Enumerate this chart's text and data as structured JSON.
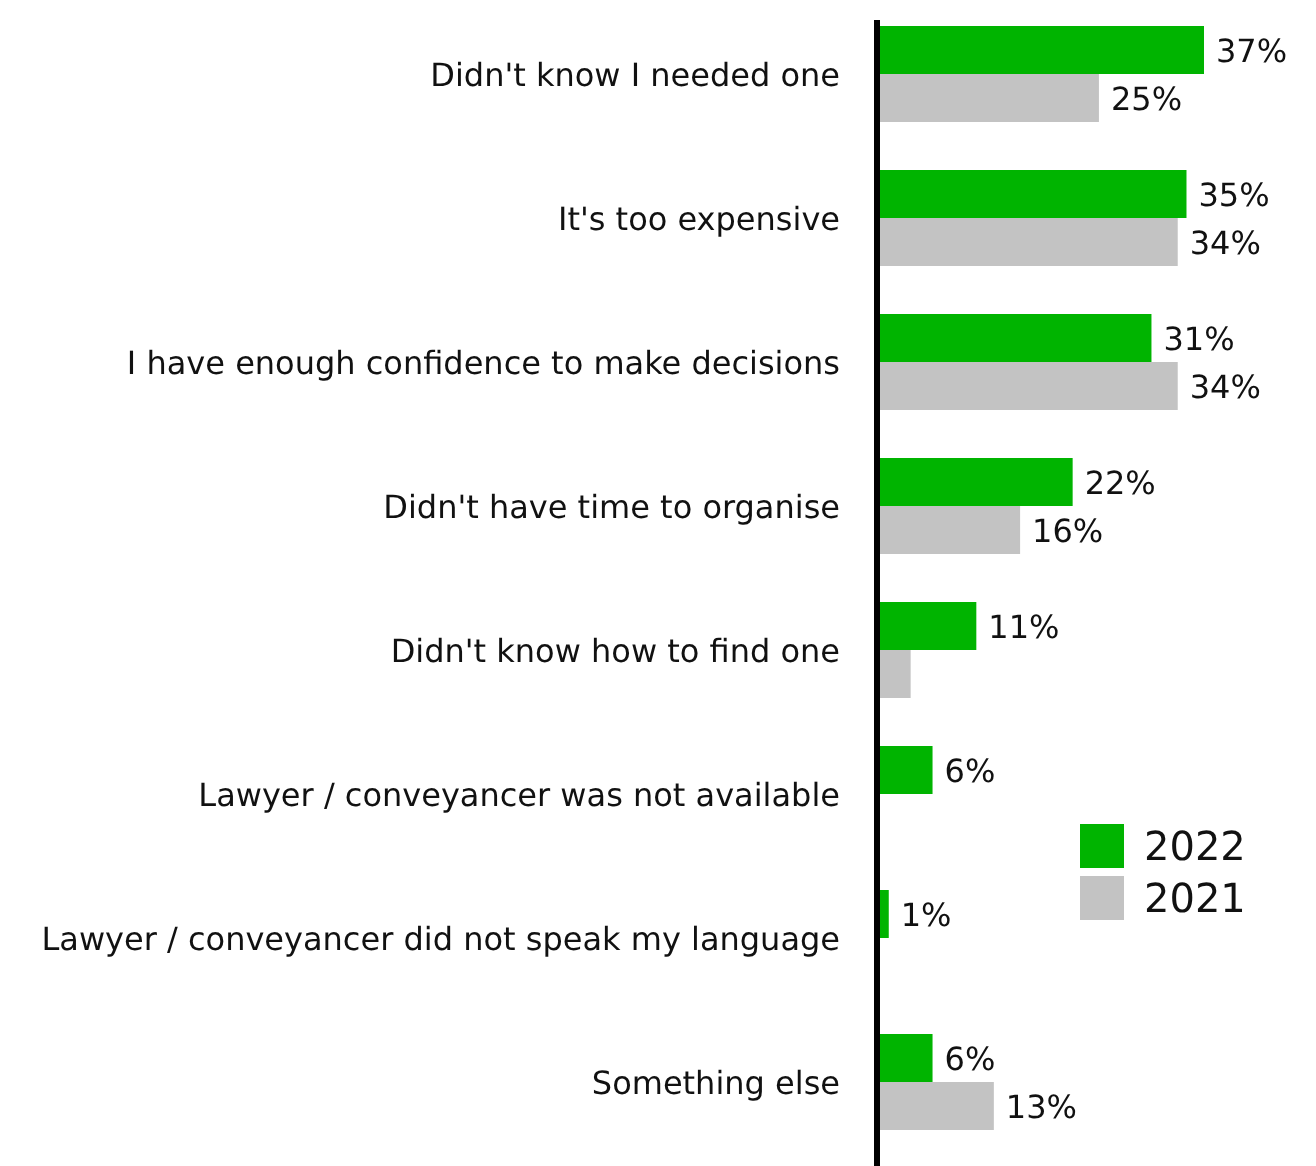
{
  "chart_data": {
    "type": "bar",
    "orientation": "horizontal",
    "categories": [
      "Didn't know I needed one",
      "It's too expensive",
      "I have enough confidence to make decisions",
      "Didn't have time to organise",
      "Didn't know how to find one",
      "Lawyer / conveyancer was not available",
      "Lawyer / conveyancer did not speak my language",
      "Something else"
    ],
    "series": [
      {
        "name": "2022",
        "color": "#00b400",
        "values": [
          37,
          35,
          31,
          22,
          11,
          6,
          1,
          6
        ],
        "value_labels": [
          "37%",
          "35%",
          "31%",
          "22%",
          "11%",
          "6%",
          "1%",
          "6%"
        ]
      },
      {
        "name": "2021",
        "color": "#c3c3c3",
        "values": [
          25,
          34,
          34,
          16,
          3.5,
          null,
          null,
          13
        ],
        "value_labels": [
          "25%",
          "34%",
          "34%",
          "16%",
          null,
          null,
          null,
          "13%"
        ]
      }
    ],
    "legend": "right"
  }
}
